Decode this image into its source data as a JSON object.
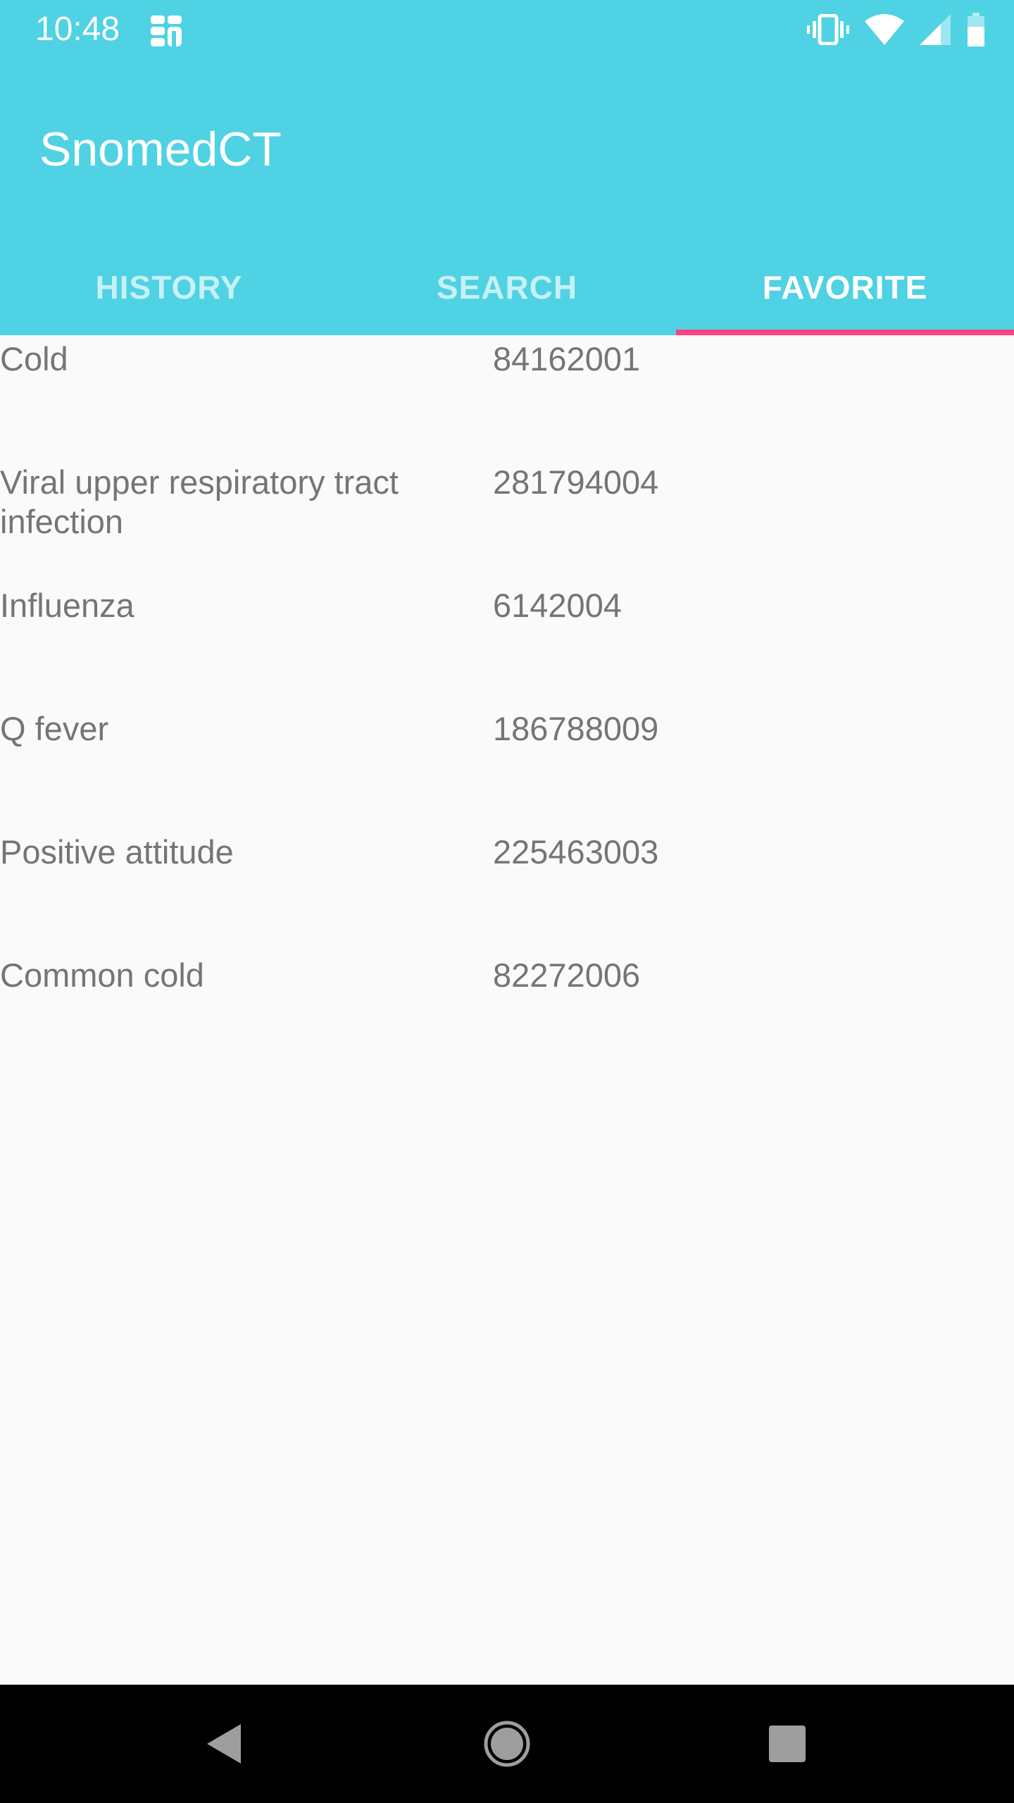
{
  "status_bar": {
    "time": "10:48",
    "icons": [
      "notification-app-icon",
      "vibrate-icon",
      "wifi-icon",
      "signal-icon",
      "battery-icon"
    ]
  },
  "app": {
    "title": "SnomedCT",
    "brand_color": "#4fd2e3",
    "accent_color": "#ff4081"
  },
  "tabs": [
    {
      "label": "HISTORY",
      "active": false
    },
    {
      "label": "SEARCH",
      "active": false
    },
    {
      "label": "FAVORITE",
      "active": true
    }
  ],
  "favorites": [
    {
      "term": "Cold",
      "code": "84162001"
    },
    {
      "term": "Viral upper respiratory tract infection",
      "code": "281794004"
    },
    {
      "term": "Influenza",
      "code": "6142004"
    },
    {
      "term": "Q fever",
      "code": "186788009"
    },
    {
      "term": "Positive attitude",
      "code": "225463003"
    },
    {
      "term": "Common cold",
      "code": "82272006"
    }
  ],
  "nav_bar": {
    "icons": [
      "back-icon",
      "home-icon",
      "recents-icon"
    ]
  }
}
